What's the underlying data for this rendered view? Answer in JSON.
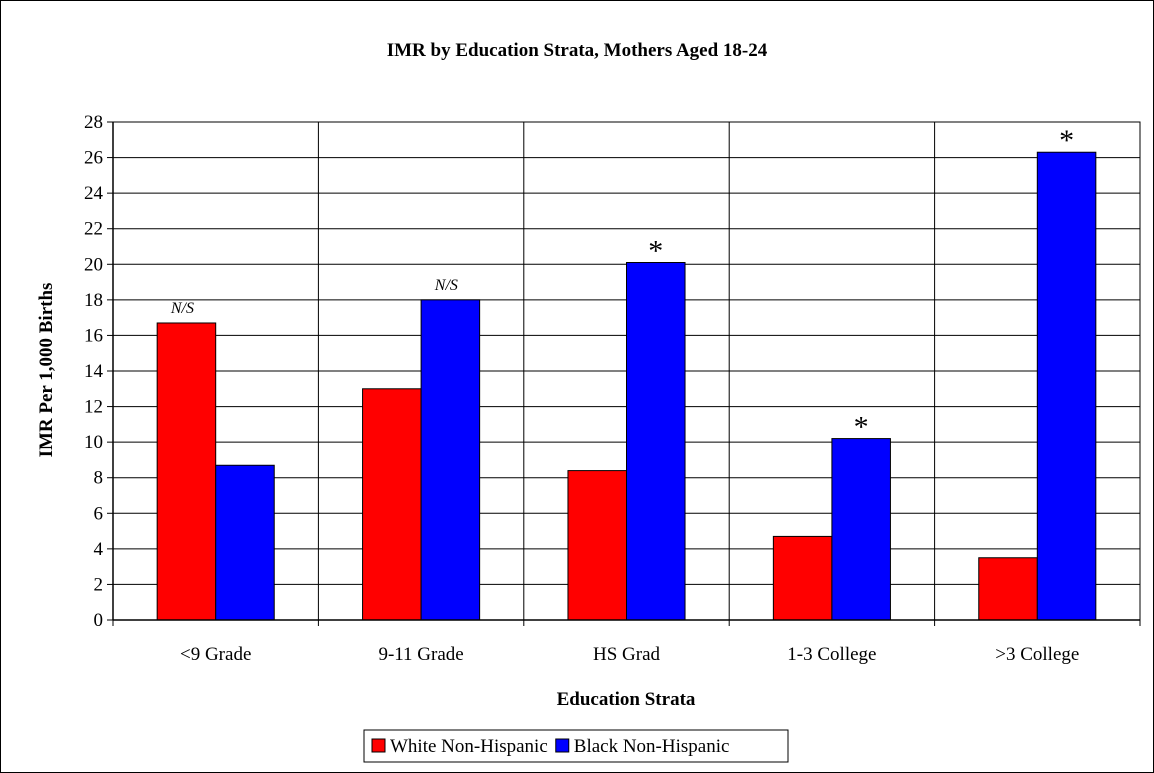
{
  "chart_data": {
    "type": "bar",
    "title": "IMR by Education Strata, Mothers Aged 18-24",
    "xlabel": "Education Strata",
    "ylabel": "IMR Per 1,000 Births",
    "ylim": [
      0,
      28
    ],
    "ytick_step": 2,
    "grid": true,
    "legend_position": "bottom",
    "categories": [
      "<9 Grade",
      "9-11 Grade",
      "HS Grad",
      "1-3 College",
      ">3 College"
    ],
    "series": [
      {
        "name": "White Non-Hispanic",
        "color": "#ff0000",
        "values": [
          16.7,
          13.0,
          8.4,
          4.7,
          3.5
        ]
      },
      {
        "name": "Black Non-Hispanic",
        "color": "#0000ff",
        "values": [
          8.7,
          18.0,
          20.1,
          10.2,
          26.3
        ]
      }
    ],
    "annotations": [
      "N/S",
      "N/S",
      "*",
      "*",
      "*"
    ]
  }
}
